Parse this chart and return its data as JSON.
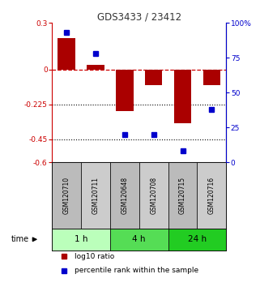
{
  "title": "GDS3433 / 23412",
  "samples": [
    "GSM120710",
    "GSM120711",
    "GSM120648",
    "GSM120708",
    "GSM120715",
    "GSM120716"
  ],
  "log10_ratio": [
    0.2,
    0.03,
    -0.27,
    -0.1,
    -0.35,
    -0.1
  ],
  "percentile_rank": [
    93,
    78,
    20,
    20,
    8,
    38
  ],
  "ylim_left": [
    -0.6,
    0.3
  ],
  "ylim_right": [
    0,
    100
  ],
  "yticks_left": [
    0.3,
    0,
    -0.225,
    -0.45,
    -0.6
  ],
  "ytick_labels_left": [
    "0.3",
    "0",
    "-0.225",
    "-0.45",
    "-0.6"
  ],
  "yticks_right": [
    100,
    75,
    50,
    25,
    0
  ],
  "ytick_labels_right": [
    "100%",
    "75",
    "50",
    "25",
    "0"
  ],
  "bar_color": "#aa0000",
  "dot_color": "#0000cc",
  "dashed_line_color": "#cc0000",
  "title_color": "#333333",
  "left_axis_color": "#cc0000",
  "right_axis_color": "#0000cc",
  "group_labels": [
    "1 h",
    "4 h",
    "24 h"
  ],
  "group_colors": [
    "#bbffbb",
    "#55dd55",
    "#22cc22"
  ],
  "group_starts": [
    0,
    2,
    4
  ],
  "group_ends": [
    2,
    4,
    6
  ],
  "time_label": "time",
  "legend_ratio_label": "log10 ratio",
  "legend_pct_label": "percentile rank within the sample",
  "sample_box_colors": [
    "#bbbbbb",
    "#cccccc",
    "#bbbbbb",
    "#cccccc",
    "#bbbbbb",
    "#cccccc"
  ]
}
